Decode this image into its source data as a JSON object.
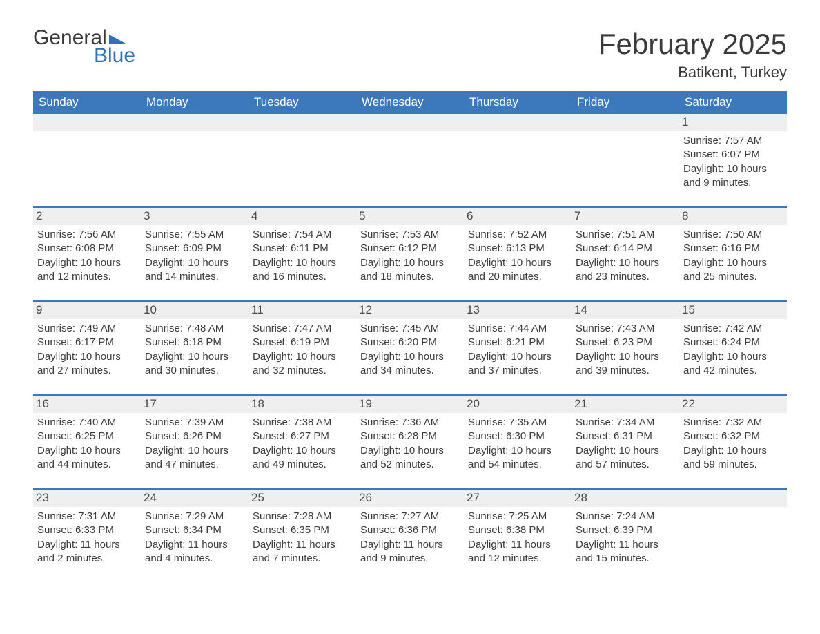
{
  "brand": {
    "word1": "General",
    "word2": "Blue",
    "accent_color": "#2f71b8"
  },
  "title": "February 2025",
  "location": "Batikent, Turkey",
  "colors": {
    "header_bg": "#3b78bc",
    "header_text": "#ffffff",
    "daynum_bg": "#efefef",
    "rule": "#3b78bc",
    "body_text": "#3c3c3c",
    "page_bg": "#ffffff"
  },
  "typography": {
    "title_fontsize": 42,
    "location_fontsize": 22,
    "dow_fontsize": 17,
    "daynum_fontsize": 17,
    "detail_fontsize": 15
  },
  "days_of_week": [
    "Sunday",
    "Monday",
    "Tuesday",
    "Wednesday",
    "Thursday",
    "Friday",
    "Saturday"
  ],
  "weeks": [
    [
      null,
      null,
      null,
      null,
      null,
      null,
      {
        "n": "1",
        "sunrise": "Sunrise: 7:57 AM",
        "sunset": "Sunset: 6:07 PM",
        "daylight": "Daylight: 10 hours and 9 minutes."
      }
    ],
    [
      {
        "n": "2",
        "sunrise": "Sunrise: 7:56 AM",
        "sunset": "Sunset: 6:08 PM",
        "daylight": "Daylight: 10 hours and 12 minutes."
      },
      {
        "n": "3",
        "sunrise": "Sunrise: 7:55 AM",
        "sunset": "Sunset: 6:09 PM",
        "daylight": "Daylight: 10 hours and 14 minutes."
      },
      {
        "n": "4",
        "sunrise": "Sunrise: 7:54 AM",
        "sunset": "Sunset: 6:11 PM",
        "daylight": "Daylight: 10 hours and 16 minutes."
      },
      {
        "n": "5",
        "sunrise": "Sunrise: 7:53 AM",
        "sunset": "Sunset: 6:12 PM",
        "daylight": "Daylight: 10 hours and 18 minutes."
      },
      {
        "n": "6",
        "sunrise": "Sunrise: 7:52 AM",
        "sunset": "Sunset: 6:13 PM",
        "daylight": "Daylight: 10 hours and 20 minutes."
      },
      {
        "n": "7",
        "sunrise": "Sunrise: 7:51 AM",
        "sunset": "Sunset: 6:14 PM",
        "daylight": "Daylight: 10 hours and 23 minutes."
      },
      {
        "n": "8",
        "sunrise": "Sunrise: 7:50 AM",
        "sunset": "Sunset: 6:16 PM",
        "daylight": "Daylight: 10 hours and 25 minutes."
      }
    ],
    [
      {
        "n": "9",
        "sunrise": "Sunrise: 7:49 AM",
        "sunset": "Sunset: 6:17 PM",
        "daylight": "Daylight: 10 hours and 27 minutes."
      },
      {
        "n": "10",
        "sunrise": "Sunrise: 7:48 AM",
        "sunset": "Sunset: 6:18 PM",
        "daylight": "Daylight: 10 hours and 30 minutes."
      },
      {
        "n": "11",
        "sunrise": "Sunrise: 7:47 AM",
        "sunset": "Sunset: 6:19 PM",
        "daylight": "Daylight: 10 hours and 32 minutes."
      },
      {
        "n": "12",
        "sunrise": "Sunrise: 7:45 AM",
        "sunset": "Sunset: 6:20 PM",
        "daylight": "Daylight: 10 hours and 34 minutes."
      },
      {
        "n": "13",
        "sunrise": "Sunrise: 7:44 AM",
        "sunset": "Sunset: 6:21 PM",
        "daylight": "Daylight: 10 hours and 37 minutes."
      },
      {
        "n": "14",
        "sunrise": "Sunrise: 7:43 AM",
        "sunset": "Sunset: 6:23 PM",
        "daylight": "Daylight: 10 hours and 39 minutes."
      },
      {
        "n": "15",
        "sunrise": "Sunrise: 7:42 AM",
        "sunset": "Sunset: 6:24 PM",
        "daylight": "Daylight: 10 hours and 42 minutes."
      }
    ],
    [
      {
        "n": "16",
        "sunrise": "Sunrise: 7:40 AM",
        "sunset": "Sunset: 6:25 PM",
        "daylight": "Daylight: 10 hours and 44 minutes."
      },
      {
        "n": "17",
        "sunrise": "Sunrise: 7:39 AM",
        "sunset": "Sunset: 6:26 PM",
        "daylight": "Daylight: 10 hours and 47 minutes."
      },
      {
        "n": "18",
        "sunrise": "Sunrise: 7:38 AM",
        "sunset": "Sunset: 6:27 PM",
        "daylight": "Daylight: 10 hours and 49 minutes."
      },
      {
        "n": "19",
        "sunrise": "Sunrise: 7:36 AM",
        "sunset": "Sunset: 6:28 PM",
        "daylight": "Daylight: 10 hours and 52 minutes."
      },
      {
        "n": "20",
        "sunrise": "Sunrise: 7:35 AM",
        "sunset": "Sunset: 6:30 PM",
        "daylight": "Daylight: 10 hours and 54 minutes."
      },
      {
        "n": "21",
        "sunrise": "Sunrise: 7:34 AM",
        "sunset": "Sunset: 6:31 PM",
        "daylight": "Daylight: 10 hours and 57 minutes."
      },
      {
        "n": "22",
        "sunrise": "Sunrise: 7:32 AM",
        "sunset": "Sunset: 6:32 PM",
        "daylight": "Daylight: 10 hours and 59 minutes."
      }
    ],
    [
      {
        "n": "23",
        "sunrise": "Sunrise: 7:31 AM",
        "sunset": "Sunset: 6:33 PM",
        "daylight": "Daylight: 11 hours and 2 minutes."
      },
      {
        "n": "24",
        "sunrise": "Sunrise: 7:29 AM",
        "sunset": "Sunset: 6:34 PM",
        "daylight": "Daylight: 11 hours and 4 minutes."
      },
      {
        "n": "25",
        "sunrise": "Sunrise: 7:28 AM",
        "sunset": "Sunset: 6:35 PM",
        "daylight": "Daylight: 11 hours and 7 minutes."
      },
      {
        "n": "26",
        "sunrise": "Sunrise: 7:27 AM",
        "sunset": "Sunset: 6:36 PM",
        "daylight": "Daylight: 11 hours and 9 minutes."
      },
      {
        "n": "27",
        "sunrise": "Sunrise: 7:25 AM",
        "sunset": "Sunset: 6:38 PM",
        "daylight": "Daylight: 11 hours and 12 minutes."
      },
      {
        "n": "28",
        "sunrise": "Sunrise: 7:24 AM",
        "sunset": "Sunset: 6:39 PM",
        "daylight": "Daylight: 11 hours and 15 minutes."
      },
      null
    ]
  ]
}
